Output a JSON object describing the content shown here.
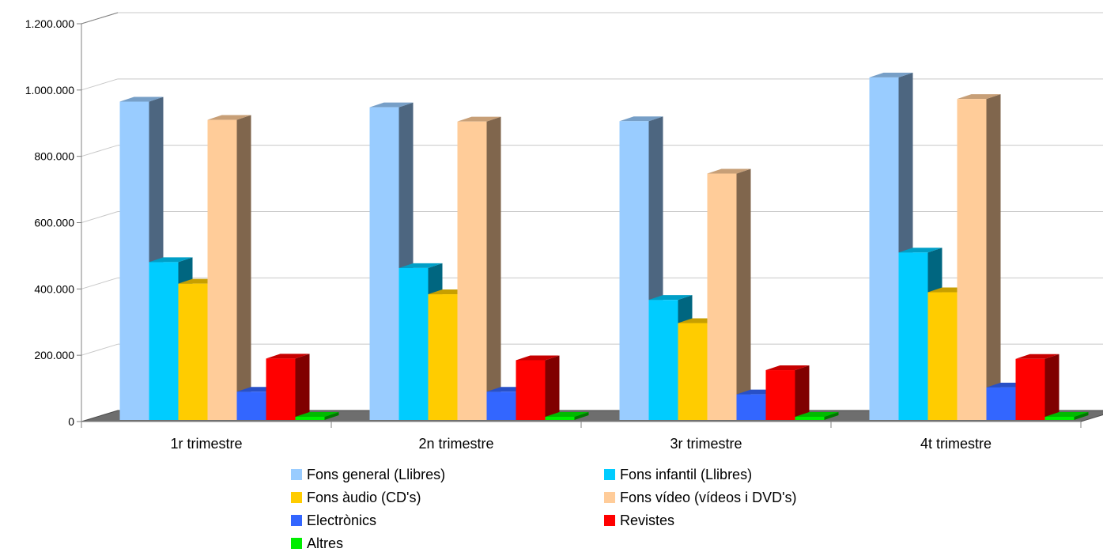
{
  "chart_data": {
    "type": "bar",
    "style": "3d-clustered",
    "categories": [
      "1r trimestre",
      "2n trimestre",
      "3r trimestre",
      "4t trimestre"
    ],
    "ylim": [
      0,
      1200000
    ],
    "yticks": [
      0,
      200000,
      400000,
      600000,
      800000,
      1000000,
      1200000
    ],
    "ytick_labels": [
      "0",
      "200.000",
      "400.000",
      "600.000",
      "800.000",
      "1.000.000",
      "1.200.000"
    ],
    "grid": true,
    "legend_placement": "bottom",
    "series": [
      {
        "name": "Fons general (Llibres)",
        "color": "#99ccff",
        "values": [
          965000,
          948000,
          906000,
          1038000
        ]
      },
      {
        "name": "Fons infantil (Llibres)",
        "color": "#00ccff",
        "values": [
          481000,
          463000,
          367000,
          510000
        ]
      },
      {
        "name": "Fons àudio (CD's)",
        "color": "#ffcc00",
        "values": [
          416000,
          384000,
          297000,
          390000
        ]
      },
      {
        "name": "Fons vídeo (vídeos i DVD's)",
        "color": "#ffcc99",
        "values": [
          910000,
          905000,
          748000,
          973000
        ]
      },
      {
        "name": "Electrònics",
        "color": "#3366ff",
        "values": [
          90000,
          90000,
          82000,
          103000
        ]
      },
      {
        "name": "Revistes",
        "color": "#ff0000",
        "values": [
          190000,
          185000,
          155000,
          189000
        ]
      },
      {
        "name": "Altres",
        "color": "#00ee00",
        "values": [
          7000,
          7000,
          6000,
          8000
        ]
      }
    ]
  }
}
